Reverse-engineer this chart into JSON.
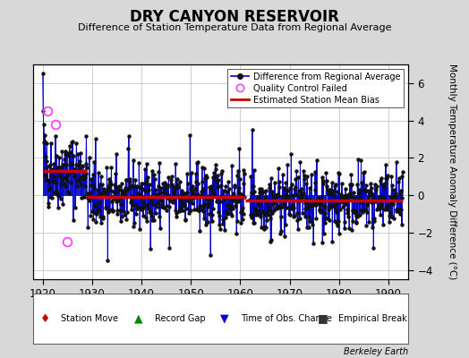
{
  "title": "DRY CANYON RESERVOIR",
  "subtitle": "Difference of Station Temperature Data from Regional Average",
  "ylabel": "Monthly Temperature Anomaly Difference (°C)",
  "xlim": [
    1918,
    1994
  ],
  "ylim": [
    -4.5,
    7.0
  ],
  "yticks": [
    -4,
    -2,
    0,
    2,
    4,
    6
  ],
  "xticks": [
    1920,
    1930,
    1940,
    1950,
    1960,
    1970,
    1980,
    1990
  ],
  "background_color": "#d8d8d8",
  "plot_bg_color": "#ffffff",
  "line_color": "#0000cc",
  "bias_color": "#cc0000",
  "marker_color": "#111111",
  "qc_color": "#ff44ff",
  "station_move_color": "#cc0000",
  "record_gap_color": "#008800",
  "time_obs_color": "#0000cc",
  "empirical_break_color": "#333333",
  "watermark": "Berkeley Earth",
  "seed": 42,
  "bias_segments": [
    {
      "x_start": 1920,
      "x_end": 1929,
      "y": 1.3
    },
    {
      "x_start": 1929,
      "x_end": 1961,
      "y": -0.1
    },
    {
      "x_start": 1961,
      "x_end": 1993,
      "y": -0.3
    }
  ],
  "station_moves": [
    1929
  ],
  "record_gaps": [
    1961
  ],
  "time_obs_changes": [
    1961
  ],
  "empirical_breaks": [
    1929,
    1961
  ]
}
